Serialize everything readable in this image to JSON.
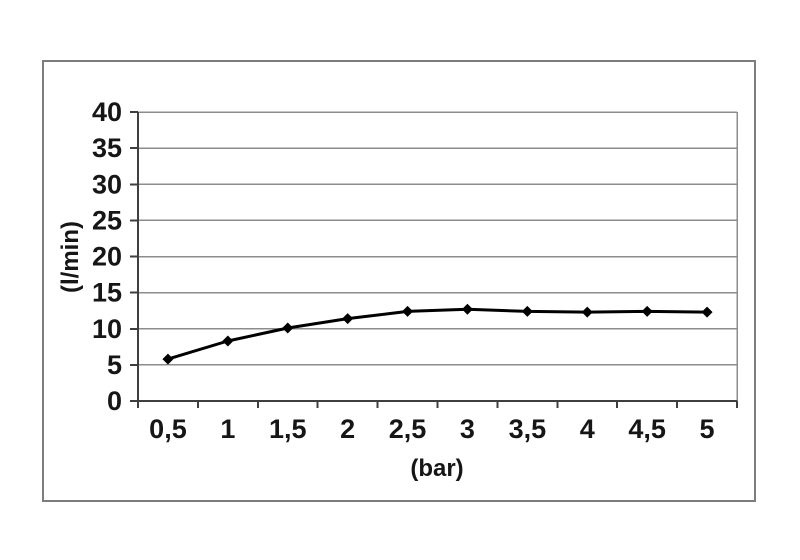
{
  "chart_frame": {
    "border_color": "#7d7d7d",
    "background": "#ffffff"
  },
  "chart_data": {
    "type": "line",
    "title": "",
    "xlabel": "(bar)",
    "ylabel": "(l/min)",
    "categories": [
      "0,5",
      "1",
      "1,5",
      "2",
      "2,5",
      "3",
      "3,5",
      "4",
      "4,5",
      "5"
    ],
    "x_numeric": [
      0.5,
      1,
      1.5,
      2,
      2.5,
      3,
      3.5,
      4,
      4.5,
      5
    ],
    "values": [
      5.8,
      8.3,
      10.1,
      11.4,
      12.4,
      12.7,
      12.4,
      12.3,
      12.4,
      12.3
    ],
    "ylim": [
      0,
      40
    ],
    "ytick_step": 5,
    "yticks": [
      "0",
      "5",
      "10",
      "15",
      "20",
      "25",
      "30",
      "35",
      "40"
    ],
    "grid": "horizontal",
    "legend": "none",
    "marker": "diamond",
    "colors": {
      "series": "#000000",
      "gridline": "#8c8c8c",
      "axis": "#3f3f3f",
      "text": "#161616",
      "plot_right_border": "#8c8c8c"
    }
  }
}
